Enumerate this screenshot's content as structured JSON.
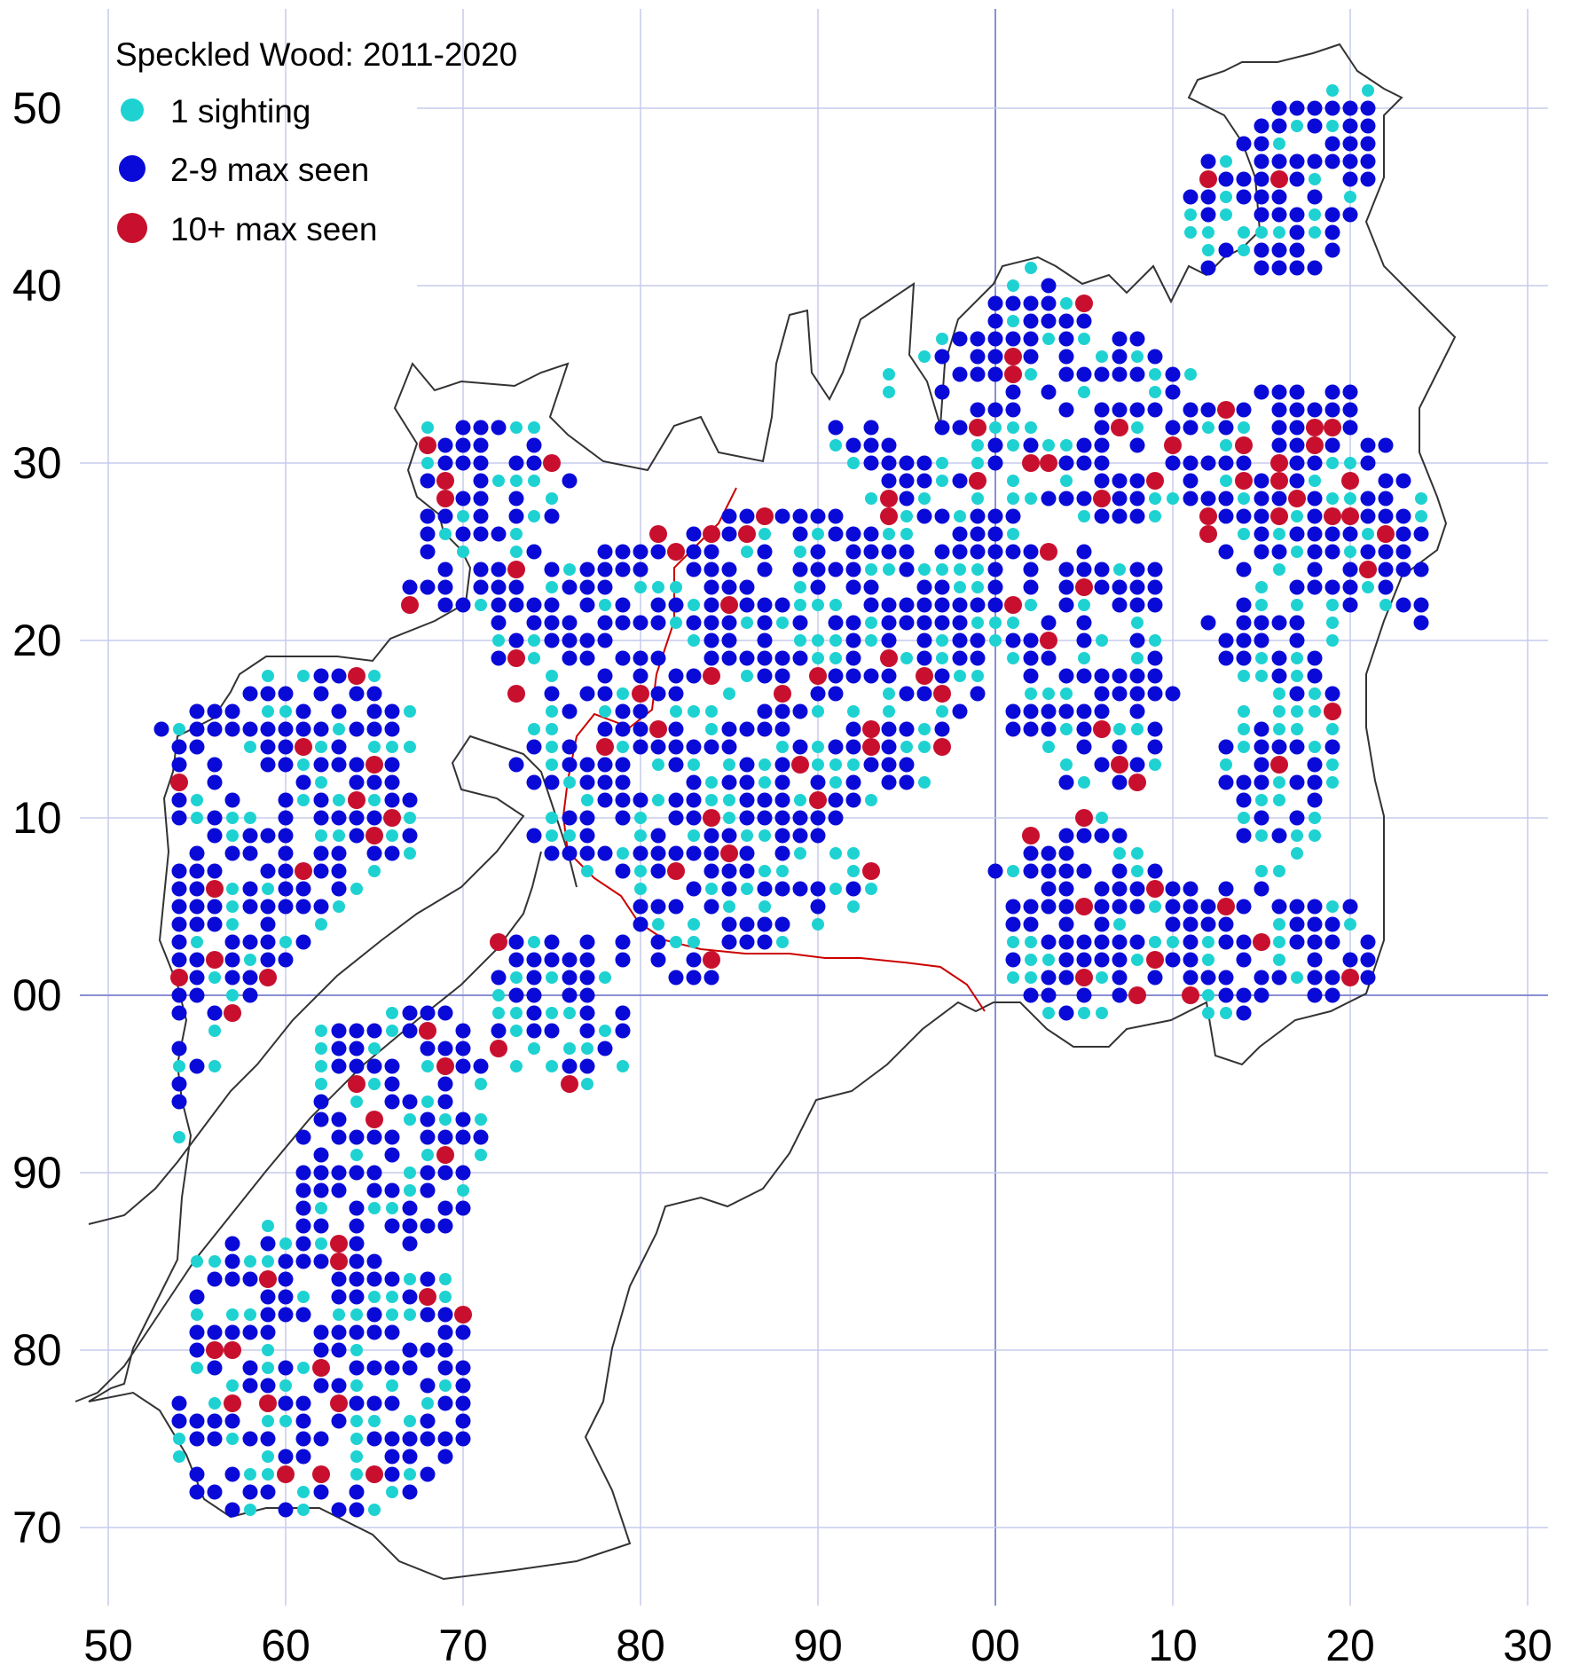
{
  "map": {
    "title": "Speckled Wood:  2011-2020",
    "grid": {
      "x_ticks": [
        "50",
        "60",
        "70",
        "80",
        "90",
        "00",
        "10",
        "20",
        "30"
      ],
      "y_ticks": [
        "50",
        "40",
        "30",
        "20",
        "10",
        "00",
        "90",
        "80",
        "70"
      ],
      "line_color": "#c7cbec",
      "origin_line_color": "#8a8fd4"
    },
    "legend": [
      {
        "key": "one",
        "label": "1 sighting",
        "color": "#1ed2d2"
      },
      {
        "key": "few",
        "label": "2-9 max seen",
        "color": "#0a0ad8"
      },
      {
        "key": "many",
        "label": "10+ max seen",
        "color": "#c8102e"
      }
    ],
    "boundary_color": "#333333",
    "river_color": "#cc0000"
  }
}
